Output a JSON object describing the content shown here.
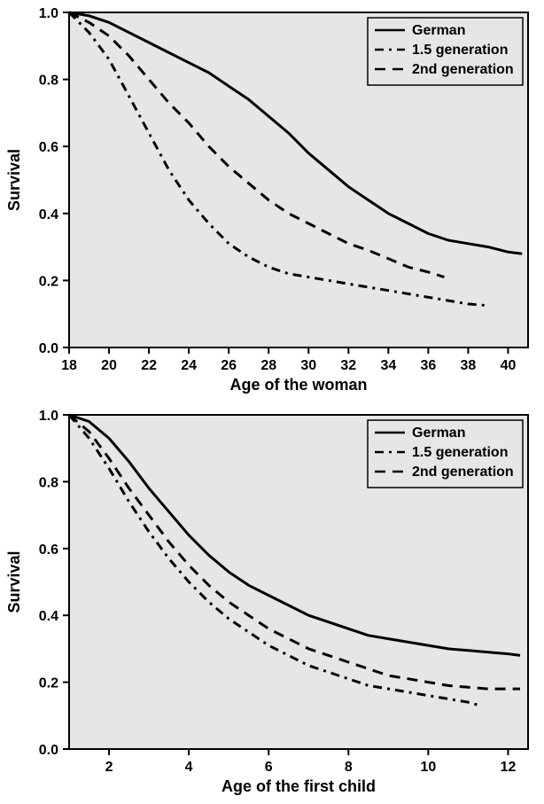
{
  "chart1": {
    "type": "line",
    "ylabel": "Survival",
    "xlabel": "Age of the woman",
    "xlim": [
      18,
      41
    ],
    "ylim": [
      0,
      1.0
    ],
    "xticks": [
      18,
      20,
      22,
      24,
      26,
      28,
      30,
      32,
      34,
      36,
      38,
      40
    ],
    "yticks": [
      0.0,
      0.2,
      0.4,
      0.6,
      0.8,
      1.0
    ],
    "background_color": "#e6e6e6",
    "border_color": "#000000",
    "line_color": "#000000",
    "line_width": 3,
    "legend": {
      "position": "topright",
      "items": [
        {
          "label": "German",
          "dash": "solid"
        },
        {
          "label": "1.5 generation",
          "dash": "dashdot"
        },
        {
          "label": "2nd generation",
          "dash": "dashed"
        }
      ]
    },
    "series": [
      {
        "name": "German",
        "dash": "solid",
        "x": [
          18,
          19,
          20,
          21,
          22,
          23,
          24,
          25,
          26,
          27,
          28,
          29,
          30,
          31,
          32,
          33,
          34,
          35,
          36,
          37,
          38,
          39,
          40,
          40.7
        ],
        "y": [
          1.0,
          0.99,
          0.97,
          0.94,
          0.91,
          0.88,
          0.85,
          0.82,
          0.78,
          0.74,
          0.69,
          0.64,
          0.58,
          0.53,
          0.48,
          0.44,
          0.4,
          0.37,
          0.34,
          0.32,
          0.31,
          0.3,
          0.285,
          0.28
        ]
      },
      {
        "name": "1.5 generation",
        "dash": "dashdot",
        "x": [
          18,
          19,
          20,
          21,
          22,
          23,
          24,
          25,
          26,
          27,
          28,
          29,
          30,
          31,
          32,
          33,
          34,
          35,
          36,
          37,
          38,
          39
        ],
        "y": [
          1.0,
          0.94,
          0.86,
          0.75,
          0.64,
          0.53,
          0.44,
          0.37,
          0.31,
          0.27,
          0.24,
          0.22,
          0.21,
          0.2,
          0.19,
          0.18,
          0.17,
          0.16,
          0.15,
          0.14,
          0.13,
          0.125
        ]
      },
      {
        "name": "2nd generation",
        "dash": "dashed",
        "x": [
          18,
          19,
          20,
          21,
          22,
          23,
          24,
          25,
          26,
          27,
          28,
          29,
          30,
          31,
          32,
          33,
          34,
          35,
          36,
          36.8
        ],
        "y": [
          1.0,
          0.97,
          0.93,
          0.87,
          0.8,
          0.73,
          0.67,
          0.6,
          0.54,
          0.49,
          0.44,
          0.4,
          0.37,
          0.34,
          0.31,
          0.29,
          0.265,
          0.24,
          0.225,
          0.21
        ]
      }
    ]
  },
  "chart2": {
    "type": "line",
    "ylabel": "Survival",
    "xlabel": "Age of the first child",
    "xlim": [
      1,
      12.5
    ],
    "ylim": [
      0,
      1.0
    ],
    "xticks": [
      2,
      4,
      6,
      8,
      10,
      12
    ],
    "yticks": [
      0.0,
      0.2,
      0.4,
      0.6,
      0.8,
      1.0
    ],
    "background_color": "#e6e6e6",
    "border_color": "#000000",
    "line_color": "#000000",
    "line_width": 3,
    "legend": {
      "position": "topright",
      "items": [
        {
          "label": "German",
          "dash": "solid"
        },
        {
          "label": "1.5 generation",
          "dash": "dashdot"
        },
        {
          "label": "2nd generation",
          "dash": "dashed"
        }
      ]
    },
    "series": [
      {
        "name": "German",
        "dash": "solid",
        "x": [
          1,
          1.5,
          2,
          2.5,
          3,
          3.5,
          4,
          4.5,
          5,
          5.5,
          6,
          6.5,
          7,
          7.5,
          8,
          8.5,
          9,
          9.5,
          10,
          10.5,
          11,
          11.5,
          12,
          12.3
        ],
        "y": [
          1.0,
          0.98,
          0.93,
          0.86,
          0.78,
          0.71,
          0.64,
          0.58,
          0.53,
          0.49,
          0.46,
          0.43,
          0.4,
          0.38,
          0.36,
          0.34,
          0.33,
          0.32,
          0.31,
          0.3,
          0.295,
          0.29,
          0.285,
          0.28
        ]
      },
      {
        "name": "1.5 generation",
        "dash": "dashdot",
        "x": [
          1,
          1.5,
          2,
          2.5,
          3,
          3.5,
          4,
          4.5,
          5,
          5.5,
          6,
          6.5,
          7,
          7.5,
          8,
          8.5,
          9,
          9.5,
          10,
          10.5,
          11,
          11.3
        ],
        "y": [
          1.0,
          0.93,
          0.84,
          0.74,
          0.65,
          0.57,
          0.5,
          0.44,
          0.39,
          0.35,
          0.31,
          0.28,
          0.25,
          0.23,
          0.21,
          0.19,
          0.18,
          0.17,
          0.16,
          0.15,
          0.14,
          0.13
        ]
      },
      {
        "name": "2nd generation",
        "dash": "dashed",
        "x": [
          1,
          1.5,
          2,
          2.5,
          3,
          3.5,
          4,
          4.5,
          5,
          5.5,
          6,
          6.5,
          7,
          7.5,
          8,
          8.5,
          9,
          9.5,
          10,
          10.5,
          11,
          11.5,
          12,
          12.3
        ],
        "y": [
          1.0,
          0.95,
          0.87,
          0.78,
          0.7,
          0.62,
          0.55,
          0.49,
          0.44,
          0.4,
          0.36,
          0.33,
          0.3,
          0.28,
          0.26,
          0.24,
          0.22,
          0.21,
          0.2,
          0.19,
          0.185,
          0.18,
          0.18,
          0.18
        ]
      }
    ]
  }
}
